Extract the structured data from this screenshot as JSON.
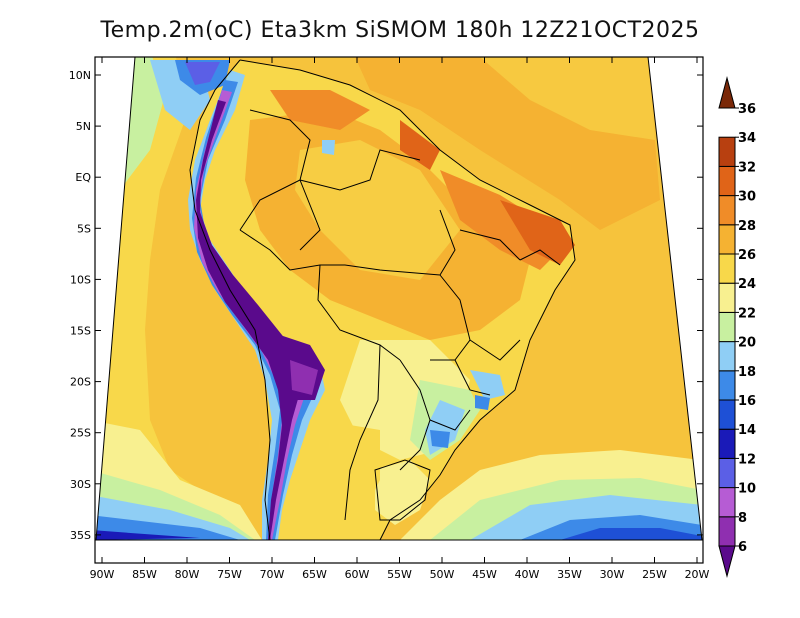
{
  "title": "Temp.2m(oC) Eta3km SiSMOM 180h 12Z21OCT2025",
  "latitude_labels": [
    "10N",
    "5N",
    "EQ",
    "5S",
    "10S",
    "15S",
    "20S",
    "25S",
    "30S",
    "35S"
  ],
  "longitude_labels": [
    "90W",
    "85W",
    "80W",
    "75W",
    "70W",
    "65W",
    "60W",
    "55W",
    "50W",
    "45W",
    "40W",
    "35W",
    "30W",
    "25W",
    "20W"
  ],
  "colorbar": {
    "labels": [
      "6",
      "8",
      "10",
      "12",
      "14",
      "16",
      "18",
      "20",
      "22",
      "24",
      "26",
      "28",
      "30",
      "32",
      "34",
      "36"
    ],
    "colors": [
      "#5a0a8c",
      "#8f2fb0",
      "#b65cd4",
      "#5b5fe6",
      "#1a1ab8",
      "#1e50d6",
      "#3d8ae8",
      "#8fcef5",
      "#c8f0a0",
      "#f8f090",
      "#f8d84a",
      "#f5b232",
      "#f08c28",
      "#e06418",
      "#b84010",
      "#7a2808"
    ]
  }
}
